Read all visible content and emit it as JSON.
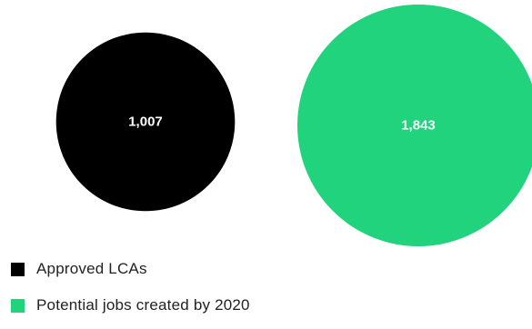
{
  "chart_data": {
    "type": "bubble",
    "title": "",
    "series": [
      {
        "name": "Approved LCAs",
        "value": 1007,
        "label": "1,007",
        "color": "#000000"
      },
      {
        "name": "Potential jobs created by 2020",
        "value": 1843,
        "label": "1,843",
        "color": "#22d37e"
      }
    ],
    "legend_position": "bottom-left",
    "grid": false
  },
  "legend": {
    "items": [
      {
        "label": "Approved LCAs",
        "color": "#000000"
      },
      {
        "label": "Potential jobs created by 2020",
        "color": "#22d37e"
      }
    ]
  }
}
